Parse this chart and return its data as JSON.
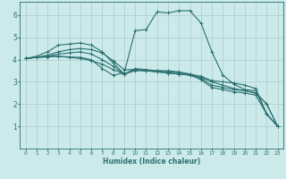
{
  "background_color": "#cceaea",
  "grid_color": "#aacccc",
  "line_color": "#2a7070",
  "xlabel": "Humidex (Indice chaleur)",
  "xlim": [
    -0.5,
    23.5
  ],
  "ylim": [
    0,
    6.6
  ],
  "xticks": [
    0,
    1,
    2,
    3,
    4,
    5,
    6,
    7,
    8,
    9,
    10,
    11,
    12,
    13,
    14,
    15,
    16,
    17,
    18,
    19,
    20,
    21,
    22,
    23
  ],
  "yticks": [
    1,
    2,
    3,
    4,
    5,
    6
  ],
  "series": [
    [
      4.05,
      4.15,
      4.35,
      4.65,
      4.7,
      4.75,
      4.65,
      4.35,
      3.85,
      3.35,
      3.6,
      3.55,
      3.5,
      3.5,
      3.45,
      3.35,
      3.25,
      3.05,
      3.0,
      2.95,
      2.85,
      2.7,
      1.55,
      1.0
    ],
    [
      4.05,
      4.1,
      4.2,
      4.35,
      4.45,
      4.5,
      4.45,
      4.3,
      3.95,
      3.55,
      3.55,
      3.5,
      3.45,
      3.4,
      3.35,
      3.3,
      3.2,
      3.0,
      2.85,
      2.7,
      2.6,
      2.5,
      2.0,
      1.0
    ],
    [
      4.05,
      4.1,
      4.15,
      4.25,
      4.3,
      4.35,
      4.25,
      4.0,
      3.7,
      3.35,
      3.55,
      3.5,
      3.45,
      3.4,
      3.35,
      3.3,
      3.1,
      2.75,
      2.65,
      2.55,
      2.5,
      2.4,
      1.55,
      1.0
    ],
    [
      4.05,
      4.1,
      4.15,
      4.15,
      4.1,
      4.05,
      3.95,
      3.8,
      3.55,
      3.35,
      3.5,
      3.5,
      3.5,
      3.45,
      3.4,
      3.35,
      3.15,
      2.85,
      2.75,
      2.65,
      2.6,
      2.5,
      2.0,
      1.0
    ],
    [
      4.05,
      4.1,
      4.12,
      4.15,
      4.12,
      4.1,
      4.0,
      3.6,
      3.3,
      3.4,
      5.3,
      5.35,
      6.15,
      6.1,
      6.2,
      6.2,
      5.65,
      4.35,
      3.3,
      2.9,
      2.65,
      2.6,
      1.55,
      1.0
    ]
  ]
}
